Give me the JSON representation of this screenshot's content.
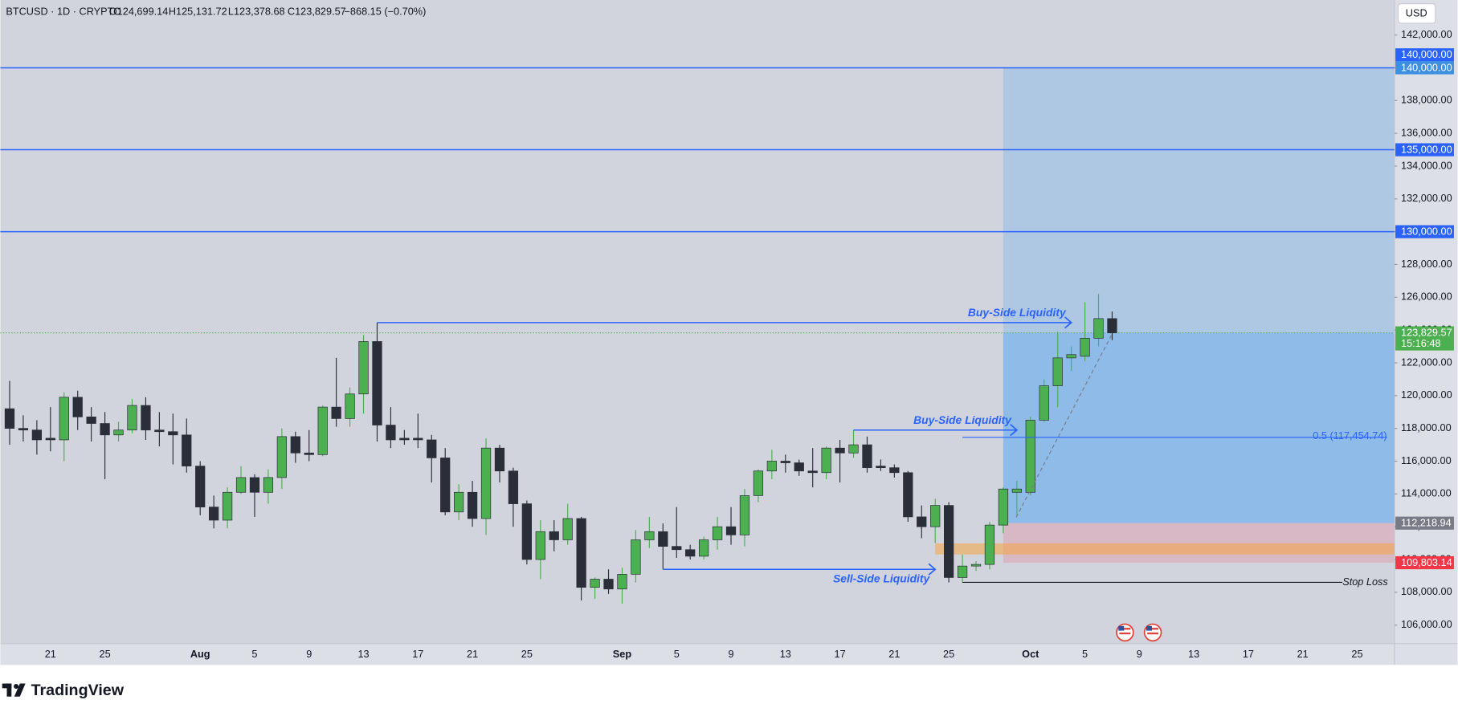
{
  "header": {
    "symbol": "BTCUSD · 1D · CRYPTO",
    "open": "O124,699.14",
    "high": "H125,131.72",
    "low": "L123,378.68",
    "close": "C123,829.57",
    "change": "−868.15 (−0.70%)",
    "currency": "USD"
  },
  "footer": {
    "brand": "TradingView"
  },
  "chart_data": {
    "type": "candlestick",
    "categories": [
      null,
      null,
      null,
      "21",
      null,
      null,
      null,
      "25",
      null,
      null,
      null,
      null,
      null,
      null,
      "Aug",
      null,
      null,
      null,
      "5",
      null,
      null,
      null,
      "9",
      null,
      null,
      null,
      "13",
      null,
      null,
      null,
      "17",
      null,
      null,
      null,
      "21",
      null,
      null,
      null,
      "25",
      null,
      null,
      null,
      null,
      null,
      null,
      "Sep",
      null,
      null,
      null,
      "5",
      null,
      null,
      null,
      "9",
      null,
      null,
      null,
      "13",
      null,
      null,
      null,
      "17",
      null,
      null,
      null,
      "21",
      null,
      null,
      null,
      "25",
      null,
      null,
      null,
      null,
      null,
      "Oct",
      null,
      null,
      null,
      "5",
      null,
      null,
      null,
      "9",
      null,
      null,
      null,
      "13",
      null,
      null,
      null,
      "17",
      null,
      null,
      null,
      "21",
      null,
      null,
      null,
      "25",
      null,
      null
    ],
    "open": [
      119200,
      118000,
      117900,
      117400,
      117300,
      119900,
      118700,
      118300,
      117600,
      117900,
      119400,
      117900,
      117800,
      117600,
      115700,
      113200,
      112400,
      114100,
      115000,
      114100,
      115000,
      117500,
      116500,
      116400,
      119300,
      118600,
      120100,
      123300,
      118200,
      117400,
      117400,
      117300,
      116200,
      112900,
      114100,
      112500,
      116800,
      115400,
      113400,
      110000,
      111700,
      111200,
      112500,
      108300,
      108800,
      108200,
      109100,
      111200,
      111700,
      110800,
      110600,
      110200,
      111200,
      112000,
      111500,
      113900,
      115400,
      116000,
      115900,
      115400,
      115300,
      116800,
      116500,
      117000,
      115700,
      115600,
      115300,
      112600,
      112000,
      113300,
      108900,
      109600,
      109700,
      112100,
      114100,
      114100,
      118500,
      120600,
      122300,
      122400,
      123500,
      124699.14,
      null,
      null,
      null,
      null,
      null,
      null,
      null,
      null,
      null,
      null,
      null,
      null,
      null,
      null,
      null,
      null,
      null,
      null,
      null,
      null
    ],
    "high": [
      120900,
      118800,
      118500,
      119300,
      120200,
      120300,
      119300,
      119000,
      118400,
      119800,
      119900,
      119000,
      118900,
      118600,
      116000,
      113900,
      114400,
      115700,
      115200,
      115500,
      118000,
      117800,
      117900,
      119400,
      122300,
      120500,
      123700,
      124457,
      119300,
      117900,
      118900,
      117600,
      116800,
      114600,
      114800,
      117400,
      117000,
      115600,
      113600,
      112400,
      112400,
      113400,
      112600,
      108900,
      109400,
      109500,
      111800,
      112600,
      112200,
      113200,
      110900,
      111400,
      112600,
      113200,
      114300,
      115500,
      116700,
      116400,
      116100,
      116800,
      116900,
      117300,
      117900,
      117500,
      116100,
      115800,
      115400,
      113300,
      113700,
      113500,
      110300,
      109900,
      112300,
      114400,
      114800,
      118700,
      121000,
      123900,
      123000,
      125700,
      126200,
      125131.72,
      null,
      null,
      null,
      null,
      null,
      null,
      null,
      null,
      null,
      null,
      null,
      null,
      null,
      null,
      null,
      null,
      null,
      null,
      null,
      null
    ],
    "low": [
      117000,
      117200,
      116400,
      116600,
      116000,
      117900,
      117200,
      114900,
      117200,
      117700,
      117300,
      116900,
      115800,
      115300,
      112700,
      111900,
      111900,
      114000,
      112600,
      113400,
      114300,
      115900,
      116000,
      116300,
      118100,
      118100,
      118900,
      117200,
      116800,
      117000,
      116800,
      114700,
      112700,
      112400,
      112000,
      111500,
      114700,
      112000,
      109700,
      108800,
      110500,
      110900,
      107500,
      107600,
      107900,
      107300,
      108600,
      110700,
      109400,
      110100,
      110000,
      110000,
      110600,
      110900,
      110800,
      113500,
      114900,
      115300,
      115100,
      114400,
      114900,
      114700,
      116200,
      115300,
      115400,
      115000,
      112300,
      111300,
      111000,
      108600,
      108600,
      109300,
      109400,
      111600,
      112700,
      113900,
      118400,
      119300,
      121500,
      122100,
      123000,
      123378.68,
      null,
      null,
      null,
      null,
      null,
      null,
      null,
      null,
      null,
      null,
      null,
      null,
      null,
      null,
      null,
      null,
      null,
      null,
      null,
      null
    ],
    "close": [
      118000,
      117900,
      117300,
      117300,
      119900,
      118700,
      118300,
      117600,
      117900,
      119400,
      117900,
      117800,
      117600,
      115700,
      113200,
      112400,
      114100,
      115000,
      114100,
      115000,
      117500,
      116500,
      116400,
      119300,
      118600,
      120100,
      123300,
      118200,
      117300,
      117300,
      117300,
      116200,
      112900,
      114100,
      112500,
      116800,
      115400,
      113400,
      110000,
      111700,
      111200,
      112500,
      108300,
      108800,
      108200,
      109100,
      111200,
      111700,
      110800,
      110600,
      110200,
      111200,
      112000,
      111500,
      113900,
      115400,
      116000,
      115900,
      115400,
      115300,
      116800,
      116500,
      117000,
      115600,
      115600,
      115300,
      112600,
      112000,
      113300,
      108900,
      109600,
      109700,
      112100,
      114300,
      114300,
      118500,
      120600,
      122300,
      122500,
      123500,
      124700,
      123829.57,
      null,
      null,
      null,
      null,
      null,
      null,
      null,
      null,
      null,
      null,
      null,
      null,
      null,
      null,
      null,
      null,
      null,
      null,
      null,
      null
    ],
    "up_color": "#4caf50",
    "down_color": "#2a2e39",
    "ylim": [
      104867,
      144137
    ],
    "yticks": [
      {
        "value": 106000,
        "label": "106,000.00"
      },
      {
        "value": 108000,
        "label": "108,000.00"
      },
      {
        "value": 110000,
        "label": "110,000.00"
      },
      {
        "value": 112000,
        "label": "112,000.00"
      },
      {
        "value": 114000,
        "label": "114,000.00"
      },
      {
        "value": 116000,
        "label": "116,000.00"
      },
      {
        "value": 118000,
        "label": "118,000.00"
      },
      {
        "value": 120000,
        "label": "120,000.00"
      },
      {
        "value": 122000,
        "label": "122,000.00"
      },
      {
        "value": 124000,
        "label": "124,000.00"
      },
      {
        "value": 126000,
        "label": "126,000.00"
      },
      {
        "value": 128000,
        "label": "128,000.00"
      },
      {
        "value": 130000,
        "label": "130,000.00"
      },
      {
        "value": 132000,
        "label": "132,000.00"
      },
      {
        "value": 134000,
        "label": "134,000.00"
      },
      {
        "value": 136000,
        "label": "136,000.00"
      },
      {
        "value": 138000,
        "label": "138,000.00"
      },
      {
        "value": 140000,
        "label": "140,000.00"
      },
      {
        "value": 142000,
        "label": "142,000.00"
      }
    ],
    "grid": false,
    "levels": [
      {
        "value": 140000,
        "label": "140,000.00",
        "color": "#2962ff"
      },
      {
        "value": 135000,
        "label": "135,000.00",
        "color": "#2962ff"
      },
      {
        "value": 130000,
        "label": "130,000.00",
        "color": "#2962ff"
      }
    ],
    "current_price": {
      "value": 123829.57,
      "label": "123,829.57",
      "countdown": "15:16:48",
      "color": "#4caf50"
    },
    "position": {
      "from": 73,
      "target": 140000,
      "target_label": "140,000.00",
      "entry": 112218.94,
      "entry_label": "112,218.94",
      "stop": 109803.14,
      "stop_label": "109,803.14"
    },
    "zones": [
      {
        "from": 68,
        "top": 110987,
        "bottom": 110307,
        "color": "#f5a442"
      }
    ],
    "liquidity": [
      {
        "text": "Buy-Side Liquidity",
        "value": 124457,
        "from": 27,
        "to": 78
      },
      {
        "text": "Buy-Side Liquidity",
        "value": 117900,
        "from": 62,
        "to": 74
      },
      {
        "text": "Sell-Side Liquidity",
        "value": 109400,
        "from": 48,
        "to": 68
      }
    ],
    "fib": {
      "label": "0.5 (117,454.74)",
      "value": 117454.74,
      "from": 70
    },
    "stop_loss": {
      "label": "Stop Loss",
      "value": 108606,
      "from": 70
    }
  }
}
